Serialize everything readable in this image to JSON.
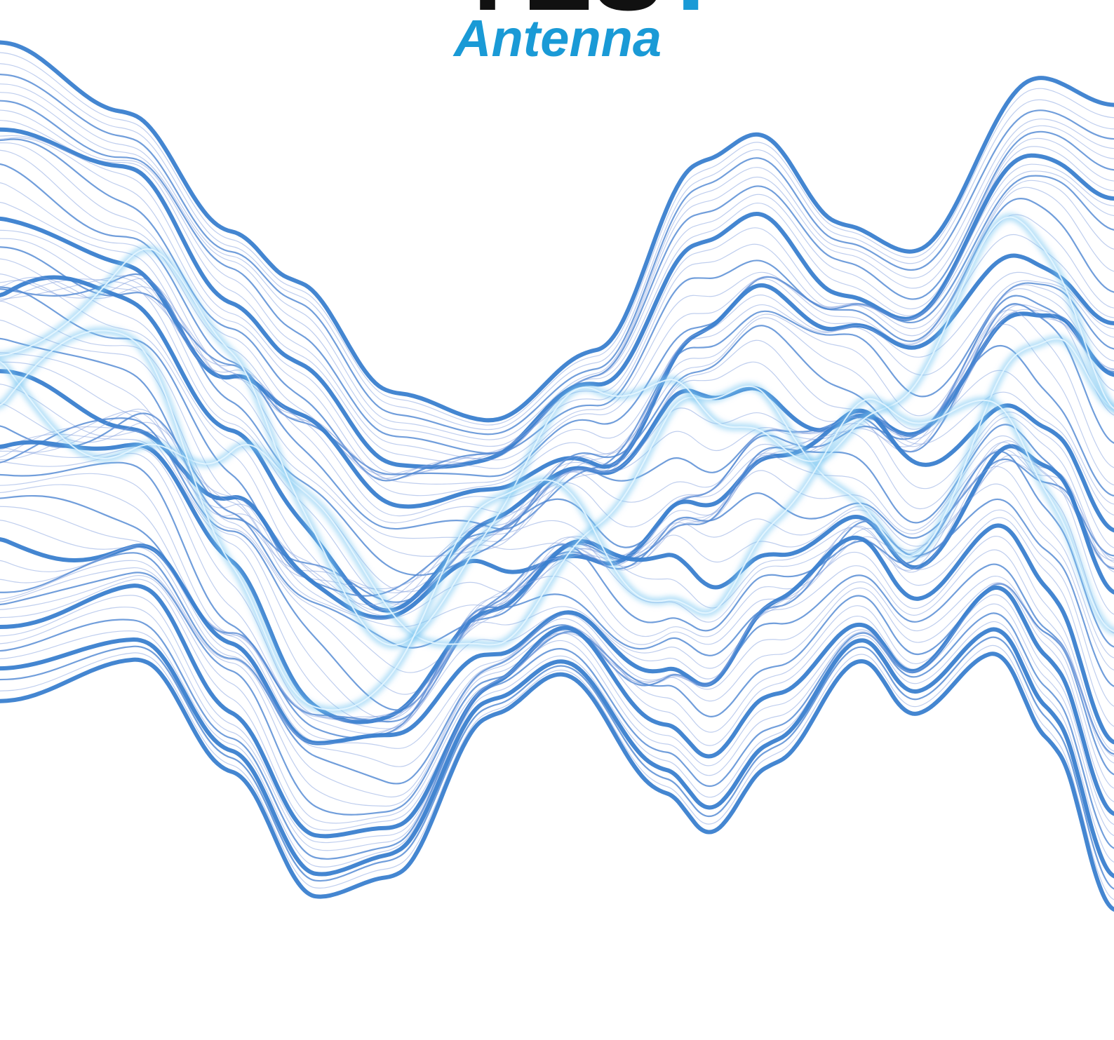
{
  "logo": {
    "word": "YES",
    "mark": "!",
    "subtitle": "Antenna"
  }
}
